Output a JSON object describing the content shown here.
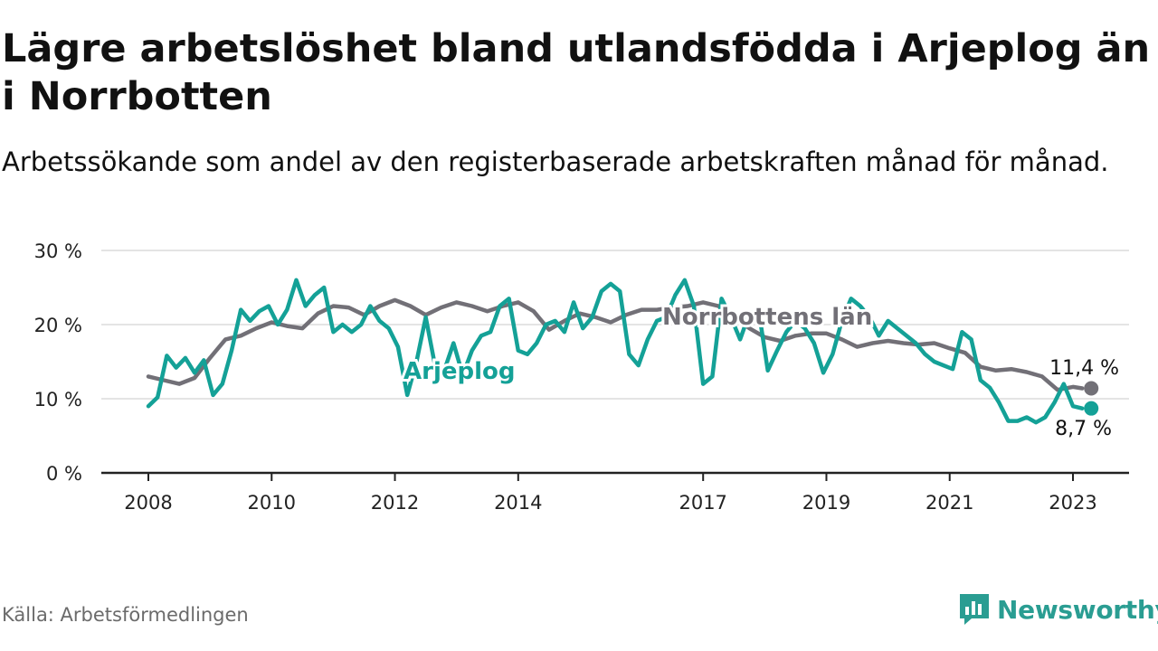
{
  "title": "Lägre arbetslöshet bland utlandsfödda i Arjeplog än i Norrbotten",
  "subtitle": "Arbetssökande som andel av den registerbaserade arbetskraften månad för månad.",
  "source": "Källa: Arbetsförmedlingen",
  "brand": "Newsworthy",
  "colors": {
    "arjeplog": "#14a197",
    "norrbotten": "#727077",
    "grid": "#dcdcdc"
  },
  "chart_data": {
    "type": "line",
    "title": "Lägre arbetslöshet bland utlandsfödda i Arjeplog än i Norrbotten",
    "xlabel": "",
    "ylabel": "",
    "ylim": [
      0,
      30
    ],
    "xlim": [
      2007.6,
      2024.0
    ],
    "grid": true,
    "yticks": [
      0,
      10,
      20,
      30
    ],
    "ytick_labels": [
      "0 %",
      "10 %",
      "20 %",
      "30 %"
    ],
    "xticks": [
      2008,
      2010,
      2012,
      2014,
      2017,
      2019,
      2021,
      2023
    ],
    "xtick_labels": [
      "2008",
      "2010",
      "2012",
      "2014",
      "2017",
      "2019",
      "2021",
      "2023"
    ],
    "series": [
      {
        "name": "Norrbottens län",
        "label": "Norrbottens län",
        "end_label": "11,4 %",
        "x": [
          2008.0,
          2008.25,
          2008.5,
          2008.75,
          2009.0,
          2009.25,
          2009.5,
          2009.75,
          2010.0,
          2010.25,
          2010.5,
          2010.75,
          2011.0,
          2011.25,
          2011.5,
          2011.75,
          2012.0,
          2012.25,
          2012.5,
          2012.75,
          2013.0,
          2013.25,
          2013.5,
          2013.75,
          2014.0,
          2014.25,
          2014.5,
          2014.75,
          2015.0,
          2015.25,
          2015.5,
          2015.75,
          2016.0,
          2016.25,
          2016.5,
          2016.75,
          2017.0,
          2017.25,
          2017.5,
          2017.75,
          2018.0,
          2018.25,
          2018.5,
          2018.75,
          2019.0,
          2019.25,
          2019.5,
          2019.75,
          2020.0,
          2020.25,
          2020.5,
          2020.75,
          2021.0,
          2021.25,
          2021.5,
          2021.75,
          2022.0,
          2022.25,
          2022.5,
          2022.75,
          2023.0,
          2023.15
        ],
        "values": [
          13.0,
          12.5,
          12.0,
          12.8,
          15.5,
          18.0,
          18.5,
          19.5,
          20.3,
          19.8,
          19.5,
          21.5,
          22.5,
          22.3,
          21.3,
          22.5,
          23.3,
          22.5,
          21.3,
          22.3,
          23.0,
          22.5,
          21.8,
          22.5,
          23.0,
          21.8,
          19.3,
          20.5,
          21.5,
          21.0,
          20.3,
          21.3,
          22.0,
          22.0,
          22.3,
          22.5,
          23.0,
          22.5,
          21.0,
          19.5,
          18.3,
          17.8,
          18.5,
          18.8,
          18.8,
          18.0,
          17.0,
          17.5,
          17.8,
          17.5,
          17.3,
          17.5,
          16.8,
          16.2,
          14.3,
          13.8,
          14.0,
          13.6,
          13.0,
          11.2,
          11.6,
          11.4
        ]
      },
      {
        "name": "Arjeplog",
        "label": "Arjeplog",
        "end_label": "8,7 %",
        "x": [
          2008.0,
          2008.15,
          2008.3,
          2008.45,
          2008.6,
          2008.75,
          2008.9,
          2009.05,
          2009.2,
          2009.35,
          2009.5,
          2009.65,
          2009.8,
          2009.95,
          2010.1,
          2010.25,
          2010.4,
          2010.55,
          2010.7,
          2010.85,
          2011.0,
          2011.15,
          2011.3,
          2011.45,
          2011.6,
          2011.75,
          2011.9,
          2012.05,
          2012.2,
          2012.35,
          2012.5,
          2012.65,
          2012.8,
          2012.95,
          2013.1,
          2013.25,
          2013.4,
          2013.55,
          2013.7,
          2013.85,
          2014.0,
          2014.15,
          2014.3,
          2014.45,
          2014.6,
          2014.75,
          2014.9,
          2015.05,
          2015.2,
          2015.35,
          2015.5,
          2015.65,
          2015.8,
          2015.95,
          2016.1,
          2016.25,
          2016.4,
          2016.55,
          2016.7,
          2016.85,
          2017.0,
          2017.15,
          2017.3,
          2017.45,
          2017.6,
          2017.75,
          2017.9,
          2018.05,
          2018.2,
          2018.35,
          2018.5,
          2018.65,
          2018.8,
          2018.95,
          2019.1,
          2019.25,
          2019.4,
          2019.55,
          2019.7,
          2019.85,
          2020.0,
          2020.15,
          2020.3,
          2020.45,
          2020.6,
          2020.75,
          2020.9,
          2021.05,
          2021.2,
          2021.35,
          2021.5,
          2021.65,
          2021.8,
          2021.95,
          2022.1,
          2022.25,
          2022.4,
          2022.55,
          2022.7,
          2022.85,
          2023.0,
          2023.15
        ],
        "values": [
          9.0,
          10.2,
          15.8,
          14.2,
          15.5,
          13.5,
          15.2,
          10.5,
          12.0,
          16.5,
          22.0,
          20.5,
          21.8,
          22.5,
          20.0,
          22.0,
          26.0,
          22.5,
          24.0,
          25.0,
          19.0,
          20.0,
          19.0,
          20.0,
          22.5,
          20.5,
          19.5,
          17.0,
          10.5,
          15.0,
          21.0,
          14.5,
          13.8,
          17.5,
          13.2,
          16.5,
          18.5,
          19.0,
          22.5,
          23.5,
          16.5,
          16.0,
          17.5,
          20.0,
          20.5,
          19.0,
          23.0,
          19.5,
          21.0,
          24.5,
          25.5,
          24.5,
          16.0,
          14.5,
          18.0,
          20.5,
          21.0,
          24.0,
          26.0,
          22.5,
          12.0,
          13.0,
          23.5,
          21.0,
          18.0,
          21.5,
          22.0,
          13.8,
          16.5,
          19.0,
          20.5,
          19.5,
          17.5,
          13.5,
          16.0,
          20.5,
          23.5,
          22.5,
          21.0,
          18.5,
          20.5,
          19.5,
          18.5,
          17.5,
          16.0,
          15.0,
          14.5,
          14.0,
          19.0,
          18.0,
          12.5,
          11.5,
          9.5,
          7.0,
          7.0,
          7.5,
          6.8,
          7.5,
          9.5,
          12.0,
          9.0,
          8.7
        ]
      }
    ]
  }
}
